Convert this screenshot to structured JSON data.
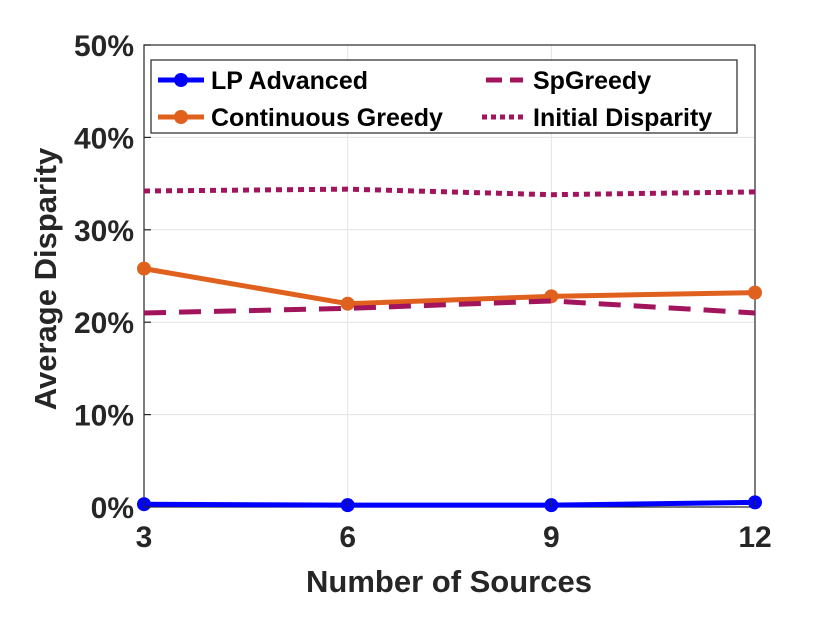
{
  "chart_data": {
    "type": "line",
    "title": "",
    "xlabel": "Number of Sources",
    "ylabel": "Average Disparity",
    "x": [
      3,
      6,
      9,
      12
    ],
    "x_tick_labels": [
      "3",
      "6",
      "9",
      "12"
    ],
    "xlim": [
      3,
      12
    ],
    "ylim": [
      0,
      50
    ],
    "y_ticks": [
      0,
      10,
      20,
      30,
      40,
      50
    ],
    "y_tick_labels": [
      "0%",
      "10%",
      "20%",
      "30%",
      "40%",
      "50%"
    ],
    "grid": true,
    "legend_position": "top",
    "series": [
      {
        "name": "LP Advanced",
        "values": [
          0.3,
          0.2,
          0.2,
          0.5
        ],
        "color": "#0000ff",
        "style": "solid",
        "marker": "circle"
      },
      {
        "name": "SpGreedy",
        "values": [
          21.0,
          21.5,
          22.3,
          21.0
        ],
        "color": "#a2145c",
        "style": "dashed",
        "marker": "none"
      },
      {
        "name": "Continuous Greedy",
        "values": [
          25.8,
          22.0,
          22.8,
          23.2
        ],
        "color": "#e0601e",
        "style": "solid",
        "marker": "circle"
      },
      {
        "name": "Initial Disparity",
        "values": [
          34.2,
          34.4,
          33.8,
          34.1
        ],
        "color": "#a2145c",
        "style": "dotted",
        "marker": "none"
      }
    ]
  }
}
